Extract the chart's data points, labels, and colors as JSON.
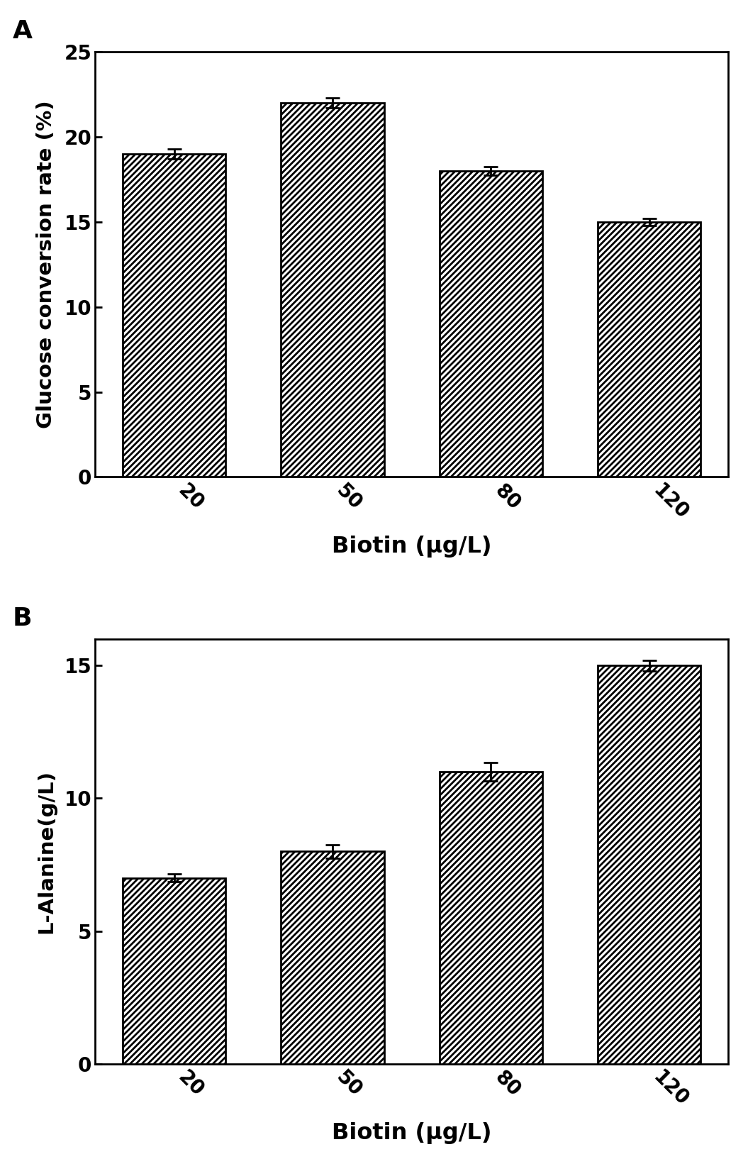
{
  "panel_A": {
    "categories": [
      "20",
      "50",
      "80",
      "120"
    ],
    "values": [
      19.0,
      22.0,
      18.0,
      15.0
    ],
    "errors": [
      0.3,
      0.3,
      0.25,
      0.2
    ],
    "ylabel": "Glucose conversion rate (%)",
    "xlabel": "Biotin (μg/L)",
    "label": "A",
    "ylim": [
      0,
      25
    ],
    "yticks": [
      0,
      5,
      10,
      15,
      20,
      25
    ]
  },
  "panel_B": {
    "categories": [
      "20",
      "50",
      "80",
      "120"
    ],
    "values": [
      7.0,
      8.0,
      11.0,
      15.0
    ],
    "errors": [
      0.15,
      0.25,
      0.35,
      0.2
    ],
    "ylabel": "L-Alanine(g/L)",
    "xlabel": "Biotin (μg/L)",
    "label": "B",
    "ylim": [
      0,
      16
    ],
    "yticks": [
      0,
      5,
      10,
      15
    ]
  },
  "bar_color": "#ffffff",
  "bar_edgecolor": "#000000",
  "hatch": "////",
  "bar_width": 0.65,
  "figsize": [
    10.55,
    16.41
  ],
  "dpi": 100,
  "tick_labelsize": 20,
  "axis_labelsize": 21,
  "axis_labelweight": "bold",
  "panel_labelsize": 26,
  "panel_labelweight": "bold",
  "xlabel_fontsize": 23,
  "xtick_rotation": -45
}
